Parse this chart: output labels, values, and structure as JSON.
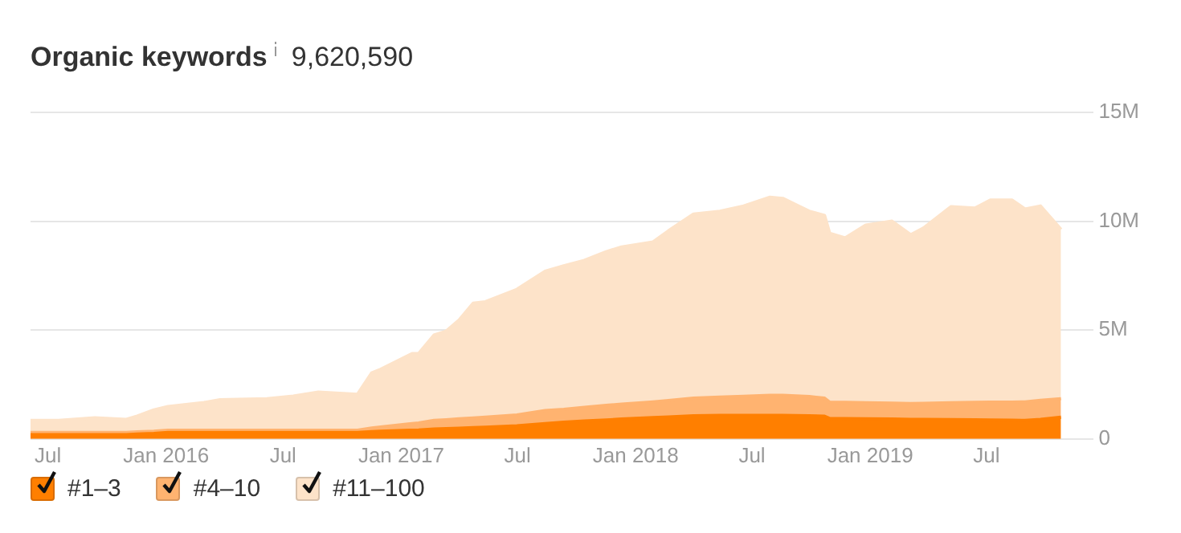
{
  "chart_data": {
    "type": "area",
    "title": "Organic keywords",
    "subtitle": "9,620,590",
    "stacked": true,
    "grid": "y",
    "legend": "bottom left",
    "x": [
      "2015-06-04",
      "2015-07-18",
      "2015-09-12",
      "2015-10-31",
      "2015-11-17",
      "2015-12-13",
      "2016-01-04",
      "2016-02-29",
      "2016-03-25",
      "2016-06-06",
      "2016-07-17",
      "2016-08-25",
      "2016-10-25",
      "2016-11-16",
      "2016-11-30",
      "2017-01-18",
      "2017-01-28",
      "2017-02-21",
      "2017-03-12",
      "2017-04-01",
      "2017-04-23",
      "2017-05-12",
      "2017-06-30",
      "2017-08-13",
      "2017-09-11",
      "2017-10-13",
      "2017-11-16",
      "2017-12-10",
      "2018-01-28",
      "2018-02-21",
      "2018-04-01",
      "2018-05-12",
      "2018-06-18",
      "2018-07-29",
      "2018-08-18",
      "2018-09-28",
      "2018-10-22",
      "2018-10-30",
      "2018-11-23",
      "2018-12-25",
      "2019-02-04",
      "2019-03-05",
      "2019-03-25",
      "2019-05-07",
      "2019-06-13",
      "2019-07-07",
      "2019-08-10",
      "2019-08-30",
      "2019-09-23",
      "2019-10-25"
    ],
    "series": [
      {
        "name": "#1–3",
        "color": "#ff7f00",
        "values": [
          0.2,
          0.2,
          0.2,
          0.2,
          0.22,
          0.25,
          0.3,
          0.3,
          0.3,
          0.3,
          0.3,
          0.3,
          0.3,
          0.33,
          0.35,
          0.4,
          0.41,
          0.45,
          0.47,
          0.49,
          0.52,
          0.54,
          0.6,
          0.7,
          0.77,
          0.82,
          0.87,
          0.91,
          0.98,
          1.01,
          1.06,
          1.08,
          1.08,
          1.08,
          1.08,
          1.06,
          1.04,
          0.94,
          0.93,
          0.92,
          0.91,
          0.9,
          0.9,
          0.89,
          0.88,
          0.87,
          0.86,
          0.85,
          0.9,
          1.0
        ]
      },
      {
        "name": "#4–10",
        "color": "#ffb370",
        "values": [
          0.1,
          0.1,
          0.1,
          0.1,
          0.1,
          0.1,
          0.1,
          0.1,
          0.1,
          0.1,
          0.1,
          0.1,
          0.1,
          0.17,
          0.2,
          0.3,
          0.32,
          0.4,
          0.41,
          0.43,
          0.44,
          0.46,
          0.5,
          0.6,
          0.59,
          0.63,
          0.67,
          0.69,
          0.72,
          0.75,
          0.81,
          0.84,
          0.88,
          0.92,
          0.92,
          0.89,
          0.83,
          0.75,
          0.75,
          0.74,
          0.73,
          0.72,
          0.73,
          0.77,
          0.8,
          0.82,
          0.83,
          0.85,
          0.87,
          0.85
        ]
      },
      {
        "name": "#11–100",
        "color": "#fde3c9",
        "values": [
          0.55,
          0.55,
          0.67,
          0.6,
          0.73,
          0.98,
          1.09,
          1.27,
          1.4,
          1.45,
          1.57,
          1.75,
          1.65,
          2.53,
          2.65,
          3.22,
          3.19,
          3.92,
          4.07,
          4.54,
          5.27,
          5.3,
          5.77,
          6.4,
          6.59,
          6.75,
          7.06,
          7.22,
          7.35,
          7.8,
          8.46,
          8.54,
          8.74,
          9.1,
          9.05,
          8.51,
          8.39,
          7.75,
          7.55,
          8.16,
          8.36,
          7.76,
          8.06,
          9.01,
          8.92,
          9.28,
          9.28,
          8.86,
          8.93,
          7.77
        ]
      }
    ],
    "xlim": [
      "2015-06-04",
      "2019-12-15"
    ],
    "xticks": [
      {
        "value": "2015-07-01",
        "label": "Jul"
      },
      {
        "value": "2016-01-01",
        "label": "Jan 2016"
      },
      {
        "value": "2016-07-01",
        "label": "Jul"
      },
      {
        "value": "2017-01-01",
        "label": "Jan 2017"
      },
      {
        "value": "2017-07-01",
        "label": "Jul"
      },
      {
        "value": "2018-01-01",
        "label": "Jan 2018"
      },
      {
        "value": "2018-07-01",
        "label": "Jul"
      },
      {
        "value": "2019-01-01",
        "label": "Jan 2019"
      },
      {
        "value": "2019-07-01",
        "label": "Jul"
      }
    ],
    "ylim": [
      0,
      15
    ],
    "yticks": [
      0,
      {
        "value": 5,
        "label": "5M"
      },
      {
        "value": 10,
        "label": "10M"
      },
      {
        "value": 15,
        "label": "15M"
      }
    ]
  }
}
